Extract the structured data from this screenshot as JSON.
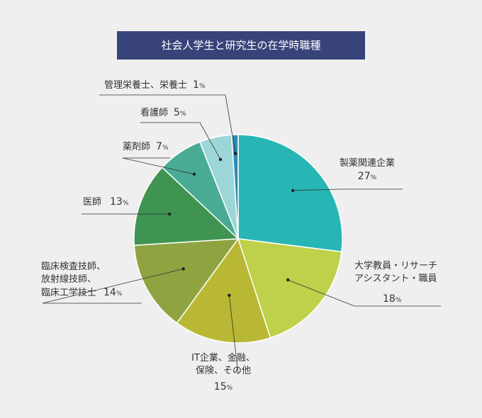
{
  "header": {
    "title": "社会人学生と研究生の在学時職種"
  },
  "chart_data": {
    "type": "pie",
    "title": "社会人学生と研究生の在学時職種",
    "unit": "%",
    "slices": [
      {
        "label": "製薬関連企業",
        "value": 27,
        "color": "#27b6b4"
      },
      {
        "label": "大学教員・リサーチアシスタント・職員",
        "value": 18,
        "color": "#bfd04a"
      },
      {
        "label": "IT企業、金融、保険、その他",
        "value": 15,
        "color": "#b8b835"
      },
      {
        "label": "臨床検査技師、放射線技師、臨床工学技士",
        "value": 14,
        "color": "#8fa441"
      },
      {
        "label": "医師",
        "value": 13,
        "color": "#3f9452"
      },
      {
        "label": "薬剤師",
        "value": 7,
        "color": "#49ab93"
      },
      {
        "label": "看護師",
        "value": 5,
        "color": "#9dd6d8"
      },
      {
        "label": "管理栄養士、栄養士",
        "value": 1,
        "color": "#2e8ab8"
      }
    ]
  },
  "labels": [
    {
      "lines": [
        "製薬関連企業"
      ],
      "pct": "27"
    },
    {
      "lines": [
        "大学教員・リサーチ",
        "アシスタント・職員"
      ],
      "pct": "18"
    },
    {
      "lines": [
        "IT企業、金融、",
        "保険、その他"
      ],
      "pct": "15"
    },
    {
      "lines": [
        "臨床検査技師、",
        "放射線技師、",
        "臨床工学技士"
      ],
      "pct": "14"
    },
    {
      "lines": [
        "医師"
      ],
      "pct": "13"
    },
    {
      "lines": [
        "薬剤師"
      ],
      "pct": "7"
    },
    {
      "lines": [
        "看護師"
      ],
      "pct": "5"
    },
    {
      "lines": [
        "管理栄養士、栄養士"
      ],
      "pct": "1"
    }
  ],
  "pct_suffix": "%"
}
